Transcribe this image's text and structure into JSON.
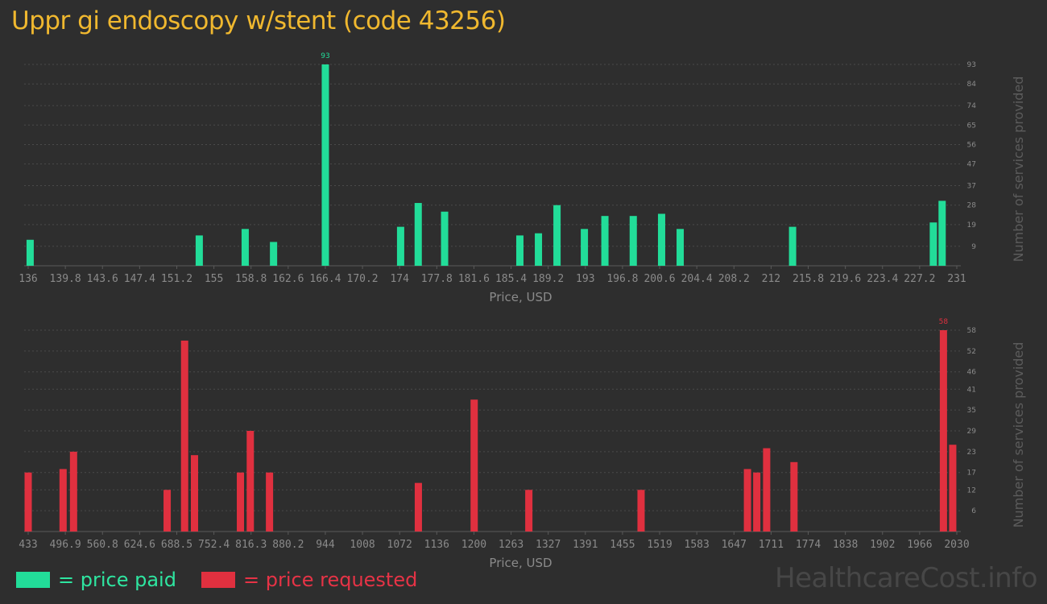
{
  "title": "Uppr gi endoscopy w/stent (code 43256)",
  "legend": {
    "paid": "= price paid",
    "requested": "= price requested"
  },
  "watermark": "HealthcareCost.info",
  "colors": {
    "paid": "#22dd99",
    "requested": "#e0303f",
    "title": "#f0b82f",
    "axis_text": "#8a8a8a",
    "grid": "#4a4a4a"
  },
  "chart_data": [
    {
      "type": "bar",
      "xlabel": "Price, USD",
      "ylabel": "Number of services provided",
      "xlim": [
        136,
        231
      ],
      "ylim": [
        0,
        93
      ],
      "x_ticks": [
        "136",
        "139.8",
        "143.6",
        "147.4",
        "151.2",
        "155",
        "158.8",
        "162.6",
        "166.4",
        "170.2",
        "174",
        "177.8",
        "181.6",
        "185.4",
        "189.2",
        "193",
        "196.8",
        "200.6",
        "204.4",
        "208.2",
        "212",
        "215.8",
        "219.6",
        "223.4",
        "227.2",
        "231"
      ],
      "y_ticks": [
        "9",
        "19",
        "28",
        "37",
        "47",
        "56",
        "65",
        "74",
        "84",
        "93"
      ],
      "series": [
        {
          "color": "#22dd99",
          "points": [
            {
              "x": 136.2,
              "y": 12
            },
            {
              "x": 153.5,
              "y": 14
            },
            {
              "x": 158.2,
              "y": 17
            },
            {
              "x": 161.1,
              "y": 11
            },
            {
              "x": 166.4,
              "y": 93,
              "label": "93"
            },
            {
              "x": 174.1,
              "y": 18
            },
            {
              "x": 175.9,
              "y": 29
            },
            {
              "x": 178.6,
              "y": 25
            },
            {
              "x": 186.3,
              "y": 14
            },
            {
              "x": 188.2,
              "y": 15
            },
            {
              "x": 190.1,
              "y": 28
            },
            {
              "x": 192.9,
              "y": 17
            },
            {
              "x": 195.0,
              "y": 23
            },
            {
              "x": 197.9,
              "y": 23
            },
            {
              "x": 200.8,
              "y": 24
            },
            {
              "x": 202.7,
              "y": 17
            },
            {
              "x": 214.2,
              "y": 18
            },
            {
              "x": 228.6,
              "y": 20
            },
            {
              "x": 229.5,
              "y": 30
            }
          ]
        }
      ]
    },
    {
      "type": "bar",
      "xlabel": "Price, USD",
      "ylabel": "Number of services provided",
      "xlim": [
        433,
        2030
      ],
      "ylim": [
        0,
        58
      ],
      "x_ticks": [
        "433",
        "496.9",
        "560.8",
        "624.6",
        "688.5",
        "752.4",
        "816.3",
        "880.2",
        "944",
        "1008",
        "1072",
        "1136",
        "1200",
        "1263",
        "1327",
        "1391",
        "1455",
        "1519",
        "1583",
        "1647",
        "1711",
        "1774",
        "1838",
        "1902",
        "1966",
        "2030"
      ],
      "y_ticks": [
        "6",
        "12",
        "17",
        "23",
        "29",
        "35",
        "41",
        "46",
        "52",
        "58"
      ],
      "series": [
        {
          "color": "#e0303f",
          "points": [
            {
              "x": 433,
              "y": 17
            },
            {
              "x": 493,
              "y": 18
            },
            {
              "x": 511,
              "y": 23
            },
            {
              "x": 672,
              "y": 12
            },
            {
              "x": 702,
              "y": 55
            },
            {
              "x": 719,
              "y": 22
            },
            {
              "x": 798,
              "y": 17
            },
            {
              "x": 815,
              "y": 29
            },
            {
              "x": 848,
              "y": 17
            },
            {
              "x": 1104,
              "y": 14
            },
            {
              "x": 1200,
              "y": 38
            },
            {
              "x": 1294,
              "y": 12
            },
            {
              "x": 1487,
              "y": 12
            },
            {
              "x": 1670,
              "y": 18
            },
            {
              "x": 1686,
              "y": 17
            },
            {
              "x": 1703,
              "y": 24
            },
            {
              "x": 1750,
              "y": 20
            },
            {
              "x": 2007,
              "y": 58,
              "label": "58"
            },
            {
              "x": 2023,
              "y": 25
            }
          ]
        }
      ]
    }
  ]
}
